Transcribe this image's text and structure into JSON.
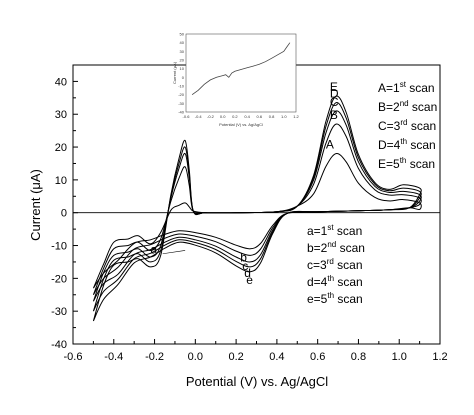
{
  "chart_data": [
    {
      "type": "line",
      "title": "",
      "xlabel": "Potential (V) vs. Ag/AgCl",
      "ylabel": "Current (μA)",
      "xlim": [
        -0.6,
        1.2
      ],
      "ylim": [
        -40,
        45
      ],
      "x_ticks": [
        -0.6,
        -0.4,
        -0.2,
        0.0,
        0.2,
        0.4,
        0.6,
        0.8,
        1.0,
        1.2
      ],
      "y_ticks": [
        -40,
        -30,
        -20,
        -10,
        0,
        10,
        20,
        30,
        40
      ],
      "x_tick_labels": [
        "-0.6",
        "-0.4",
        "-0.2",
        "0.0",
        "0.2",
        "0.4",
        "0.6",
        "0.8",
        "1.0",
        "1.2"
      ],
      "y_tick_labels": [
        "-40",
        "-30",
        "-20",
        "-10",
        "0",
        "10",
        "20",
        "30",
        "40"
      ],
      "grid": false,
      "series": [
        {
          "name": "1st scan",
          "letter_upper": "A",
          "letter_lower": "a",
          "oxidation_peak": 18,
          "reduction_min": -11,
          "start_current": -23,
          "end_current": 1,
          "left_peak": 3
        },
        {
          "name": "2nd scan",
          "letter_upper": "B",
          "letter_lower": "b",
          "oxidation_peak": 27,
          "reduction_min": -13,
          "start_current": -25,
          "end_current": 2.5,
          "left_peak": 14
        },
        {
          "name": "3rd scan",
          "letter_upper": "C",
          "letter_lower": "c",
          "oxidation_peak": 31,
          "reduction_min": -15,
          "start_current": -27,
          "end_current": 3.5,
          "left_peak": 18
        },
        {
          "name": "4th scan",
          "letter_upper": "D",
          "letter_lower": "d",
          "oxidation_peak": 33.5,
          "reduction_min": -16.5,
          "start_current": -30,
          "end_current": 4.5,
          "left_peak": 20
        },
        {
          "name": "5th scan",
          "letter_upper": "E",
          "letter_lower": "e",
          "oxidation_peak": 35.5,
          "reduction_min": -18,
          "start_current": -33,
          "end_current": 5.5,
          "left_peak": 22
        }
      ],
      "legend_upper": [
        {
          "key": "A=1",
          "sup": "st",
          "tail": " scan"
        },
        {
          "key": "B=2",
          "sup": "nd",
          "tail": " scan"
        },
        {
          "key": "C=3",
          "sup": "rd",
          "tail": " scan"
        },
        {
          "key": "D=4",
          "sup": "th",
          "tail": " scan"
        },
        {
          "key": "E=5",
          "sup": "th",
          "tail": " scan"
        }
      ],
      "legend_lower": [
        {
          "key": "a=1",
          "sup": "st",
          "tail": " scan"
        },
        {
          "key": "b=2",
          "sup": "nd",
          "tail": " scan"
        },
        {
          "key": "c=3",
          "sup": "rd",
          "tail": " scan"
        },
        {
          "key": "d=4",
          "sup": "th",
          "tail": " scan"
        },
        {
          "key": "e=5",
          "sup": "th",
          "tail": " scan"
        }
      ],
      "legend_upper_placement": "right",
      "legend_lower_placement": "lower-right"
    },
    {
      "type": "line",
      "role": "inset",
      "xlabel": "Potential (V) vs. Ag/AgCl",
      "ylabel": "Current (μA)",
      "xlim": [
        -0.6,
        1.2
      ],
      "ylim": [
        -40,
        50
      ],
      "x_tick_labels": [
        "-0.6",
        "-0.4",
        "-0.2",
        "0.0",
        "0.2",
        "0.4",
        "0.6",
        "0.8",
        "1.0",
        "1.2"
      ],
      "y_tick_labels": [
        "-40",
        "-30",
        "-20",
        "-10",
        "0",
        "10",
        "20",
        "30",
        "40",
        "50"
      ],
      "series": [
        {
          "x": [
            -0.5,
            -0.4,
            -0.3,
            -0.2,
            -0.1,
            0.0,
            0.05,
            0.1,
            0.15,
            0.2,
            0.3,
            0.4,
            0.5,
            0.6,
            0.7,
            0.8,
            0.9,
            1.0,
            1.05,
            1.1
          ],
          "y": [
            -20,
            -15,
            -8,
            -3,
            0,
            2,
            3,
            0,
            5,
            7,
            9,
            11,
            13,
            15,
            18,
            22,
            26,
            30,
            35,
            40
          ]
        }
      ]
    }
  ]
}
